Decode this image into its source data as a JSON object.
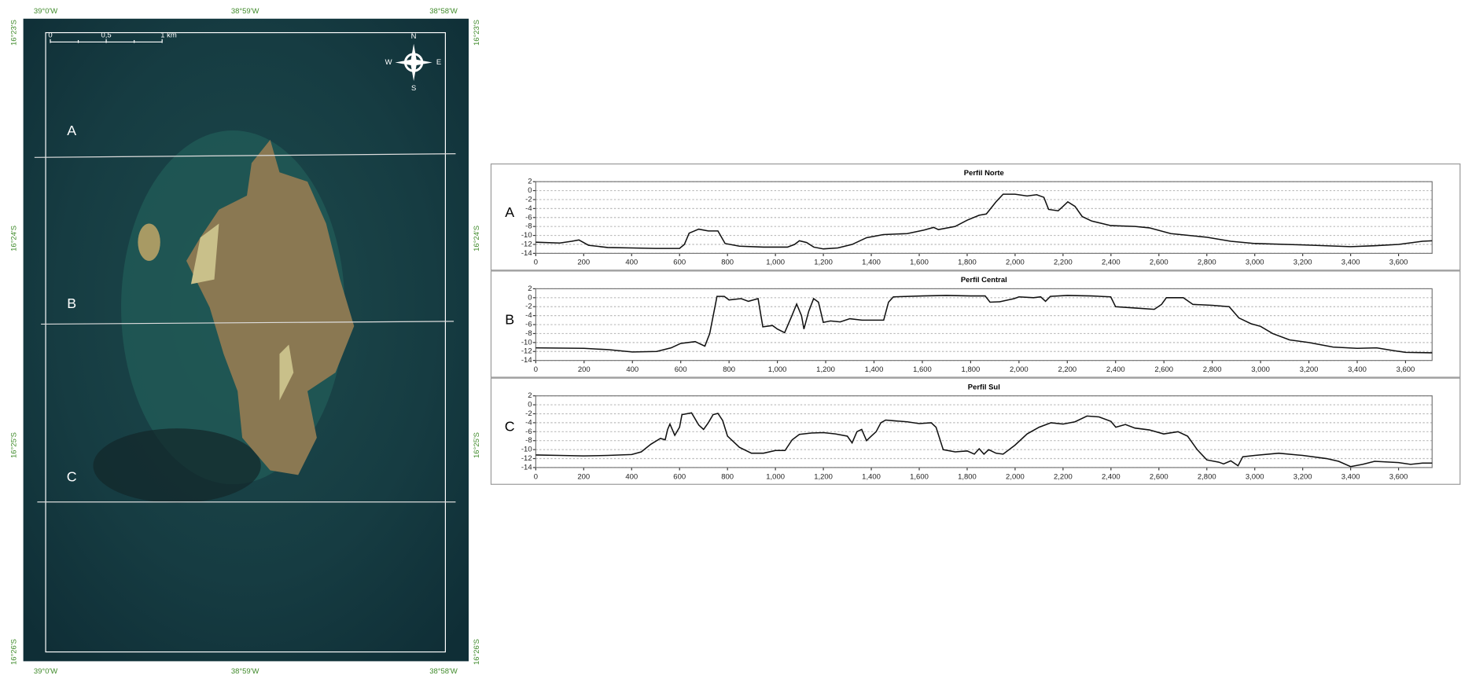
{
  "map": {
    "lon_labels": [
      "39°0'W",
      "38°59'W",
      "38°58'W"
    ],
    "lat_labels": [
      "16°23'S",
      "16°24'S",
      "16°25'S",
      "16°26'S"
    ],
    "section_labels": [
      "A",
      "B",
      "C"
    ],
    "scale_labels": [
      "0",
      "0,5",
      "1 km"
    ],
    "compass": [
      "N",
      "S",
      "W",
      "E"
    ]
  },
  "chart_data": [
    {
      "type": "line",
      "title": "Perfil Norte",
      "panel_label": "A",
      "color": "#111111",
      "grid": true,
      "xlim": [
        0,
        3740
      ],
      "ylim": [
        -14,
        2
      ],
      "yticks": [
        2,
        0,
        -2,
        -4,
        -6,
        -8,
        -10,
        -12,
        -14
      ],
      "xticks": [
        0,
        200,
        400,
        600,
        800,
        {
          "value": 1000,
          "label": "1,000"
        },
        {
          "value": 1200,
          "label": "1,200"
        },
        {
          "value": 1400,
          "label": "1,400"
        },
        {
          "value": 1600,
          "label": "1,600"
        },
        {
          "value": 1800,
          "label": "1,800"
        },
        {
          "value": 2000,
          "label": "2,000"
        },
        {
          "value": 2200,
          "label": "2,200"
        },
        {
          "value": 2400,
          "label": "2,400"
        },
        {
          "value": 2600,
          "label": "2,600"
        },
        {
          "value": 2800,
          "label": "2,800"
        },
        {
          "value": 3000,
          "label": "3,000"
        },
        {
          "value": 3200,
          "label": "3,200"
        },
        {
          "value": 3400,
          "label": "3,400"
        },
        {
          "value": 3600,
          "label": "3,600"
        }
      ],
      "x": [
        0,
        100,
        150,
        180,
        220,
        300,
        400,
        500,
        600,
        620,
        640,
        680,
        720,
        760,
        790,
        850,
        950,
        1050,
        1080,
        1100,
        1130,
        1160,
        1200,
        1260,
        1320,
        1380,
        1450,
        1550,
        1620,
        1660,
        1680,
        1750,
        1800,
        1850,
        1880,
        1920,
        1950,
        2000,
        2050,
        2090,
        2120,
        2140,
        2180,
        2200,
        2220,
        2250,
        2280,
        2320,
        2400,
        2500,
        2560,
        2650,
        2800,
        2900,
        3000,
        3200,
        3400,
        3500,
        3600,
        3700,
        3740
      ],
      "values": [
        -11.5,
        -11.7,
        -11.3,
        -11,
        -12.2,
        -12.7,
        -12.8,
        -12.9,
        -12.9,
        -12,
        -9.5,
        -8.6,
        -9,
        -9,
        -11.8,
        -12.4,
        -12.6,
        -12.6,
        -12,
        -11.2,
        -11.6,
        -12.6,
        -13,
        -12.8,
        -12,
        -10.5,
        -9.8,
        -9.6,
        -8.8,
        -8.2,
        -8.7,
        -8,
        -6.6,
        -5.5,
        -5.2,
        -2.5,
        -0.8,
        -0.8,
        -1.2,
        -0.9,
        -1.5,
        -4.2,
        -4.5,
        -3.5,
        -2.5,
        -3.5,
        -5.8,
        -6.8,
        -7.8,
        -8,
        -8.3,
        -9.6,
        -10.4,
        -11.3,
        -11.8,
        -12.1,
        -12.5,
        -12.3,
        -12,
        -11.3,
        -11.2
      ]
    },
    {
      "type": "line",
      "title": "Perfil Central",
      "panel_label": "B",
      "color": "#111111",
      "grid": true,
      "xlim": [
        0,
        3710
      ],
      "ylim": [
        -14,
        2
      ],
      "yticks": [
        2,
        0,
        -2,
        -4,
        -6,
        -8,
        -10,
        -12,
        -14
      ],
      "xticks": [
        0,
        200,
        400,
        600,
        800,
        {
          "value": 1000,
          "label": "1,000"
        },
        {
          "value": 1200,
          "label": "1,200"
        },
        {
          "value": 1400,
          "label": "1,400"
        },
        {
          "value": 1600,
          "label": "1,600"
        },
        {
          "value": 1800,
          "label": "1,800"
        },
        {
          "value": 2000,
          "label": "2,000"
        },
        {
          "value": 2200,
          "label": "2,200"
        },
        {
          "value": 2400,
          "label": "2,400"
        },
        {
          "value": 2600,
          "label": "2,600"
        },
        {
          "value": 2800,
          "label": "2,800"
        },
        {
          "value": 3000,
          "label": "3,000"
        },
        {
          "value": 3200,
          "label": "3,200"
        },
        {
          "value": 3400,
          "label": "3,400"
        },
        {
          "value": 3600,
          "label": "3,600"
        }
      ],
      "x": [
        0,
        200,
        300,
        400,
        500,
        560,
        600,
        660,
        700,
        720,
        750,
        780,
        800,
        850,
        880,
        920,
        940,
        980,
        1000,
        1030,
        1060,
        1080,
        1100,
        1110,
        1130,
        1150,
        1170,
        1190,
        1220,
        1260,
        1300,
        1350,
        1400,
        1440,
        1460,
        1480,
        1600,
        1700,
        1800,
        1860,
        1880,
        1920,
        1980,
        2000,
        2060,
        2090,
        2110,
        2130,
        2200,
        2300,
        2380,
        2400,
        2480,
        2560,
        2590,
        2610,
        2680,
        2720,
        2800,
        2870,
        2910,
        2960,
        3000,
        3050,
        3120,
        3200,
        3300,
        3400,
        3480,
        3550,
        3600,
        3710
      ],
      "values": [
        -11.2,
        -11.3,
        -11.6,
        -12.1,
        -12,
        -11.2,
        -10.2,
        -9.8,
        -10.8,
        -8,
        0.3,
        0.3,
        -0.5,
        -0.2,
        -0.8,
        -0.2,
        -6.5,
        -6.2,
        -7,
        -7.8,
        -4,
        -1.4,
        -4,
        -7,
        -3,
        -0.2,
        -1,
        -5.5,
        -5.2,
        -5.4,
        -4.7,
        -5,
        -5,
        -5,
        -1,
        0.2,
        0.4,
        0.5,
        0.4,
        0.4,
        -1,
        -0.9,
        -0.2,
        0.2,
        0,
        0.2,
        -0.8,
        0.3,
        0.5,
        0.4,
        0.2,
        -2,
        -2.3,
        -2.6,
        -1.5,
        0,
        0,
        -1.5,
        -1.7,
        -2,
        -4.5,
        -5.8,
        -6.4,
        -8,
        -9.4,
        -10,
        -11,
        -11.3,
        -11.2,
        -11.8,
        -12.2,
        -12.3
      ]
    },
    {
      "type": "line",
      "title": "Perfil Sul",
      "panel_label": "C",
      "color": "#111111",
      "grid": true,
      "xlim": [
        0,
        3740
      ],
      "ylim": [
        -14,
        2
      ],
      "yticks": [
        2,
        0,
        -2,
        -4,
        -6,
        -8,
        -10,
        -12,
        -14
      ],
      "xticks": [
        0,
        200,
        400,
        600,
        800,
        {
          "value": 1000,
          "label": "1,000"
        },
        {
          "value": 1200,
          "label": "1,200"
        },
        {
          "value": 1400,
          "label": "1,400"
        },
        {
          "value": 1600,
          "label": "1,600"
        },
        {
          "value": 1800,
          "label": "1,800"
        },
        {
          "value": 2000,
          "label": "2,000"
        },
        {
          "value": 2200,
          "label": "2,200"
        },
        {
          "value": 2400,
          "label": "2,400"
        },
        {
          "value": 2600,
          "label": "2,600"
        },
        {
          "value": 2800,
          "label": "2,800"
        },
        {
          "value": 3000,
          "label": "3,000"
        },
        {
          "value": 3200,
          "label": "3,200"
        },
        {
          "value": 3400,
          "label": "3,400"
        },
        {
          "value": 3600,
          "label": "3,600"
        }
      ],
      "x": [
        0,
        100,
        200,
        300,
        400,
        440,
        480,
        520,
        540,
        550,
        560,
        580,
        600,
        610,
        650,
        680,
        700,
        720,
        740,
        760,
        780,
        800,
        850,
        900,
        950,
        1000,
        1040,
        1070,
        1100,
        1150,
        1200,
        1250,
        1300,
        1320,
        1340,
        1360,
        1380,
        1400,
        1420,
        1440,
        1460,
        1500,
        1550,
        1600,
        1650,
        1670,
        1700,
        1750,
        1800,
        1830,
        1850,
        1870,
        1890,
        1920,
        1950,
        2000,
        2050,
        2100,
        2150,
        2200,
        2250,
        2300,
        2350,
        2400,
        2420,
        2460,
        2500,
        2560,
        2620,
        2680,
        2720,
        2760,
        2800,
        2850,
        2870,
        2900,
        2930,
        2950,
        3000,
        3100,
        3200,
        3300,
        3350,
        3400,
        3450,
        3500,
        3600,
        3650,
        3700,
        3740
      ],
      "values": [
        -11.2,
        -11.3,
        -11.4,
        -11.3,
        -11.1,
        -10.5,
        -8.8,
        -7.5,
        -7.8,
        -5.5,
        -4.3,
        -6.8,
        -5,
        -2.2,
        -1.8,
        -4.5,
        -5.5,
        -4,
        -2.2,
        -1.9,
        -3.5,
        -7,
        -9.5,
        -10.8,
        -10.8,
        -10.2,
        -10.2,
        -7.8,
        -6.6,
        -6.3,
        -6.2,
        -6.5,
        -7,
        -8.5,
        -6,
        -5.5,
        -8,
        -7,
        -6,
        -4,
        -3.4,
        -3.6,
        -3.8,
        -4.2,
        -4,
        -5,
        -10,
        -10.5,
        -10.3,
        -11,
        -9.8,
        -11,
        -10,
        -10.8,
        -11,
        -9,
        -6.5,
        -5,
        -4,
        -4.3,
        -3.8,
        -2.5,
        -2.7,
        -3.7,
        -5,
        -4.4,
        -5.2,
        -5.6,
        -6.5,
        -6,
        -7,
        -10,
        -12.3,
        -12.8,
        -13.2,
        -12.5,
        -13.6,
        -11.6,
        -11.3,
        -10.8,
        -11.3,
        -12,
        -12.6,
        -13.8,
        -13.3,
        -12.6,
        -12.9,
        -13.3,
        -13,
        -13
      ]
    }
  ]
}
